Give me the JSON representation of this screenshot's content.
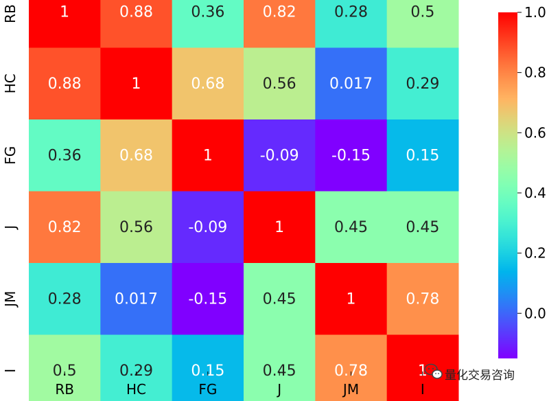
{
  "chart_data": {
    "type": "heatmap",
    "x_labels": [
      "RB",
      "HC",
      "FG",
      "J",
      "JM",
      "I"
    ],
    "y_labels": [
      "RB",
      "HC",
      "FG",
      "J",
      "JM",
      "I"
    ],
    "values": [
      [
        1,
        0.88,
        0.36,
        0.82,
        0.28,
        0.5
      ],
      [
        0.88,
        1,
        0.68,
        0.56,
        0.017,
        0.29
      ],
      [
        0.36,
        0.68,
        1,
        -0.09,
        -0.15,
        0.15
      ],
      [
        0.82,
        0.56,
        -0.09,
        1,
        0.45,
        0.45
      ],
      [
        0.28,
        0.017,
        -0.15,
        0.45,
        1,
        0.78
      ],
      [
        0.5,
        0.29,
        0.15,
        0.45,
        0.78,
        1
      ]
    ],
    "value_labels": [
      [
        "1",
        "0.88",
        "0.36",
        "0.82",
        "0.28",
        "0.5"
      ],
      [
        "0.88",
        "1",
        "0.68",
        "0.56",
        "0.017",
        "0.29"
      ],
      [
        "0.36",
        "0.68",
        "1",
        "-0.09",
        "-0.15",
        "0.15"
      ],
      [
        "0.82",
        "0.56",
        "-0.09",
        "1",
        "0.45",
        "0.45"
      ],
      [
        "0.28",
        "0.017",
        "-0.15",
        "0.45",
        "1",
        "0.78"
      ],
      [
        "0.5",
        "0.29",
        "0.15",
        "0.45",
        "0.78",
        "1"
      ]
    ],
    "colormap": "rainbow",
    "vmin": -0.15,
    "vmax": 1.0,
    "colorbar_ticks": [
      1.0,
      0.8,
      0.6,
      0.4,
      0.2,
      0.0
    ],
    "colorbar_tick_labels": [
      "1.0",
      "0.8",
      "0.6",
      "0.4",
      "0.2",
      "0.0"
    ],
    "title": "",
    "xlabel": "",
    "ylabel": ""
  },
  "watermark": {
    "text": "量化交易咨询",
    "icon": "wechat-icon"
  }
}
